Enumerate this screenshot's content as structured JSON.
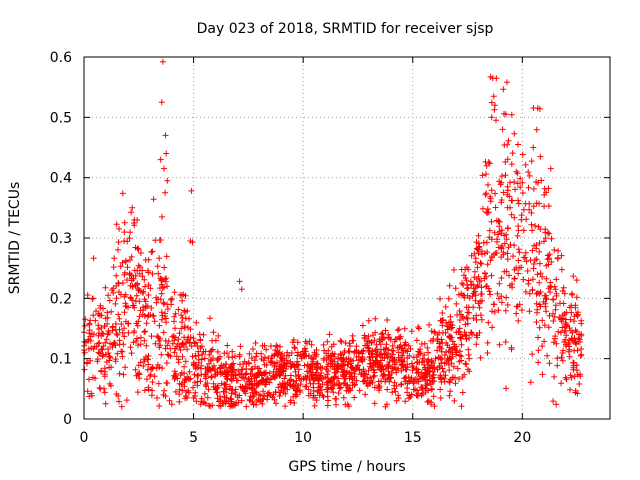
{
  "chart_data": {
    "type": "scatter",
    "title": "Day 023 of 2018, SRMTID for receiver sjsp",
    "xlabel": "GPS time / hours",
    "ylabel": "SRMTID / TECUs",
    "xlim": [
      0,
      24
    ],
    "ylim": [
      0,
      0.6
    ],
    "xticks": [
      0,
      5,
      10,
      15,
      20
    ],
    "yticks": [
      0,
      0.1,
      0.2,
      0.3,
      0.4,
      0.5,
      0.6
    ],
    "grid": true,
    "marker": "+",
    "series_color": "#ff0000",
    "series": [
      {
        "name": "SRMTID",
        "x_range": [
          0.0,
          22.7
        ],
        "profile": [
          [
            0.0,
            0.12,
            0.045
          ],
          [
            0.5,
            0.14,
            0.05
          ],
          [
            1.0,
            0.11,
            0.04
          ],
          [
            1.5,
            0.17,
            0.07
          ],
          [
            2.0,
            0.2,
            0.08
          ],
          [
            2.5,
            0.19,
            0.07
          ],
          [
            3.0,
            0.15,
            0.06
          ],
          [
            3.5,
            0.17,
            0.09
          ],
          [
            4.0,
            0.12,
            0.06
          ],
          [
            4.5,
            0.1,
            0.05
          ],
          [
            5.0,
            0.09,
            0.045
          ],
          [
            5.5,
            0.08,
            0.04
          ],
          [
            6.0,
            0.075,
            0.035
          ],
          [
            6.5,
            0.065,
            0.03
          ],
          [
            7.0,
            0.06,
            0.03
          ],
          [
            7.5,
            0.065,
            0.025
          ],
          [
            8.0,
            0.07,
            0.025
          ],
          [
            9.0,
            0.075,
            0.025
          ],
          [
            10.0,
            0.08,
            0.025
          ],
          [
            11.0,
            0.075,
            0.025
          ],
          [
            12.0,
            0.08,
            0.025
          ],
          [
            13.0,
            0.09,
            0.03
          ],
          [
            14.0,
            0.095,
            0.03
          ],
          [
            15.0,
            0.085,
            0.03
          ],
          [
            15.5,
            0.075,
            0.03
          ],
          [
            16.0,
            0.09,
            0.035
          ],
          [
            16.5,
            0.11,
            0.04
          ],
          [
            17.0,
            0.13,
            0.045
          ],
          [
            17.5,
            0.16,
            0.05
          ],
          [
            18.0,
            0.22,
            0.07
          ],
          [
            18.5,
            0.3,
            0.09
          ],
          [
            19.0,
            0.32,
            0.1
          ],
          [
            19.5,
            0.31,
            0.1
          ],
          [
            20.0,
            0.3,
            0.09
          ],
          [
            20.5,
            0.27,
            0.09
          ],
          [
            21.0,
            0.24,
            0.08
          ],
          [
            21.5,
            0.17,
            0.06
          ],
          [
            22.0,
            0.14,
            0.05
          ],
          [
            22.7,
            0.13,
            0.04
          ]
        ],
        "outliers": [
          [
            3.6,
            0.592
          ],
          [
            3.55,
            0.525
          ],
          [
            3.72,
            0.47
          ],
          [
            3.75,
            0.44
          ],
          [
            3.65,
            0.415
          ],
          [
            3.5,
            0.43
          ],
          [
            3.8,
            0.395
          ],
          [
            3.7,
            0.375
          ],
          [
            4.9,
            0.378
          ],
          [
            4.85,
            0.295
          ],
          [
            4.95,
            0.293
          ],
          [
            2.2,
            0.35
          ],
          [
            2.3,
            0.33
          ],
          [
            1.6,
            0.315
          ],
          [
            7.1,
            0.228
          ],
          [
            7.2,
            0.215
          ],
          [
            18.55,
            0.567
          ],
          [
            18.65,
            0.565
          ],
          [
            19.3,
            0.558
          ],
          [
            18.7,
            0.535
          ],
          [
            18.75,
            0.52
          ],
          [
            19.25,
            0.505
          ],
          [
            20.7,
            0.515
          ],
          [
            20.8,
            0.514
          ],
          [
            18.6,
            0.5
          ],
          [
            18.8,
            0.495
          ],
          [
            19.8,
            0.455
          ],
          [
            20.5,
            0.45
          ],
          [
            19.1,
            0.48
          ],
          [
            21.3,
            0.415
          ],
          [
            21.2,
            0.382
          ],
          [
            22.6,
            0.058
          ],
          [
            16.9,
            0.03
          ]
        ]
      }
    ]
  }
}
